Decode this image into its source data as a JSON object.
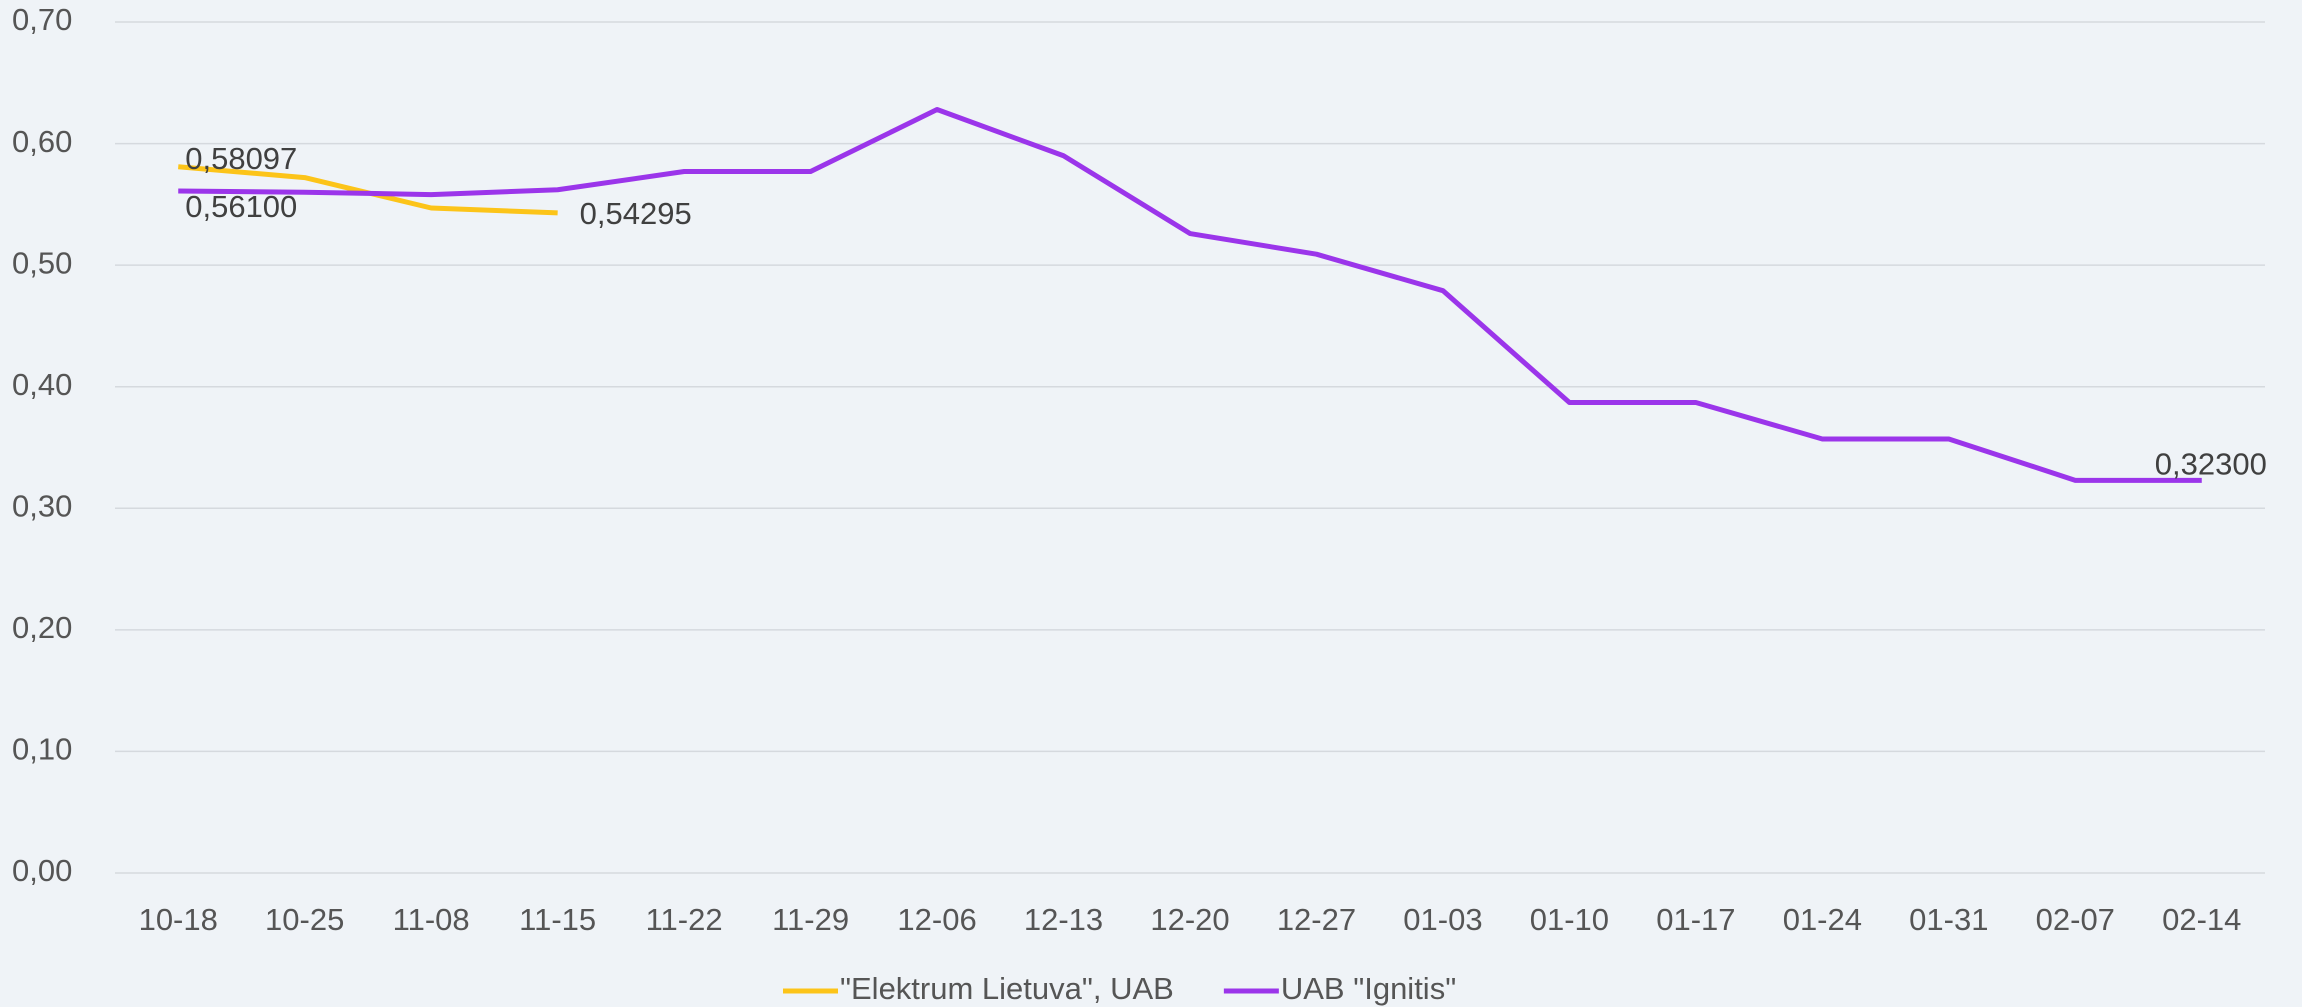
{
  "chart_data": {
    "type": "line",
    "categories": [
      "10-18",
      "10-25",
      "11-08",
      "11-15",
      "11-22",
      "11-29",
      "12-06",
      "12-13",
      "12-20",
      "12-27",
      "01-03",
      "01-10",
      "01-17",
      "01-24",
      "01-31",
      "02-07",
      "02-14"
    ],
    "series": [
      {
        "name": "\"Elektrum Lietuva\", UAB",
        "color": "#fcc419",
        "values": [
          0.58097,
          0.572,
          0.547,
          0.54295,
          null,
          null,
          null,
          null,
          null,
          null,
          null,
          null,
          null,
          null,
          null,
          null,
          null
        ],
        "value_labels": [
          "0,58097",
          null,
          null,
          "0,54295",
          null,
          null,
          null,
          null,
          null,
          null,
          null,
          null,
          null,
          null,
          null,
          null,
          null
        ]
      },
      {
        "name": "UAB \"Ignitis\"",
        "color": "#9b35ea",
        "values": [
          0.561,
          0.56,
          0.558,
          0.562,
          0.577,
          0.577,
          0.628,
          0.59,
          0.526,
          0.509,
          0.479,
          0.387,
          0.387,
          0.357,
          0.357,
          0.323,
          0.323
        ],
        "value_labels": [
          "0,56100",
          null,
          null,
          null,
          null,
          null,
          null,
          null,
          null,
          null,
          null,
          null,
          null,
          null,
          null,
          null,
          "0,32300"
        ]
      }
    ],
    "ylim": [
      0,
      0.7
    ],
    "yticks": [
      {
        "value": 0,
        "label": "0,00"
      },
      {
        "value": 0.1,
        "label": "0,10"
      },
      {
        "value": 0.2,
        "label": "0,20"
      },
      {
        "value": 0.3,
        "label": "0,30"
      },
      {
        "value": 0.4,
        "label": "0,40"
      },
      {
        "value": 0.5,
        "label": "0,50"
      },
      {
        "value": 0.6,
        "label": "0,60"
      },
      {
        "value": 0.7,
        "label": "0,70"
      }
    ],
    "grid": true,
    "legend": "bottom"
  }
}
